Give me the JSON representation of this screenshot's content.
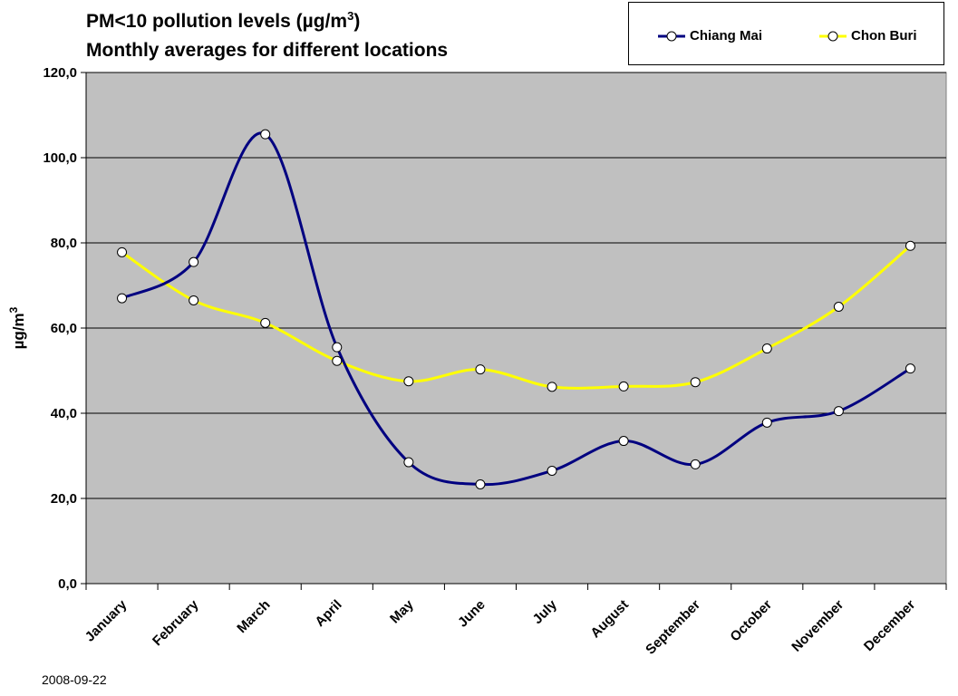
{
  "title_line1": "PM<10 pollution levels (µg/m",
  "title_sup": "3",
  "title_line1_end": ")",
  "title_line2": "Monthly averages for different locations",
  "date_stamp": "2008-09-22",
  "chart_data": {
    "type": "line",
    "smoothed": true,
    "categories": [
      "January",
      "February",
      "March",
      "April",
      "May",
      "June",
      "July",
      "August",
      "September",
      "October",
      "November",
      "December"
    ],
    "ylabel": "µg/m",
    "ylabel_sup": "3",
    "ylim": [
      0,
      120
    ],
    "ytick_labels": [
      "0,0",
      "20,0",
      "40,0",
      "60,0",
      "80,0",
      "100,0",
      "120,0"
    ],
    "yticks": [
      0,
      20,
      40,
      60,
      80,
      100,
      120
    ],
    "grid": true,
    "plot_background": "#c0c0c0",
    "legend_position": "top-right",
    "series": [
      {
        "name": "Chiang Mai",
        "color": "#000080",
        "values": [
          67.0,
          75.5,
          105.5,
          55.5,
          28.5,
          23.3,
          26.5,
          33.5,
          28.0,
          37.8,
          40.5,
          50.5
        ]
      },
      {
        "name": "Chon Buri",
        "color": "#ffff00",
        "values": [
          77.8,
          66.5,
          61.2,
          52.3,
          47.5,
          50.3,
          46.2,
          46.3,
          47.3,
          55.2,
          65.0,
          79.3
        ]
      }
    ]
  }
}
